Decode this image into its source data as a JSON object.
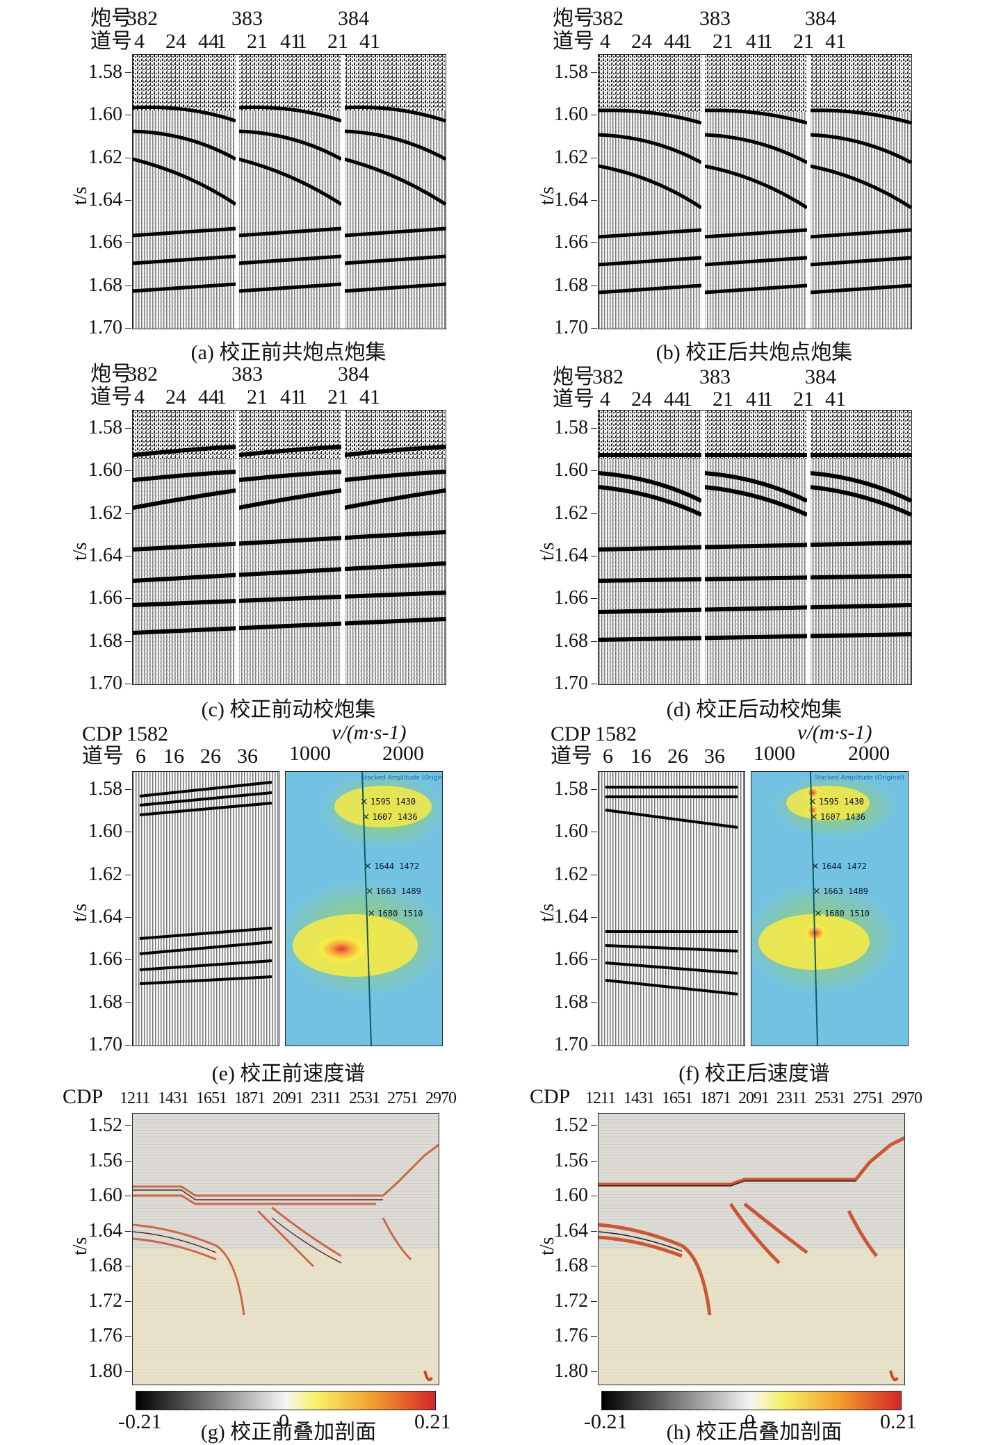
{
  "labels": {
    "shot_no": "炮号",
    "trace_no": "道号",
    "t_axis": "t/s",
    "cdp": "CDP",
    "velocity_axis": "v/(m·s-1)"
  },
  "shot_gather_axis": {
    "shots": [
      "382",
      "383",
      "384"
    ],
    "traces": [
      "4",
      "24",
      "44",
      "1",
      "21",
      "41",
      "1",
      "21",
      "41"
    ],
    "t_ticks": [
      "1.58",
      "1.60",
      "1.62",
      "1.64",
      "1.66",
      "1.68",
      "1.70"
    ]
  },
  "velocity_axis": {
    "cdp_value": "1582",
    "traces": [
      "6",
      "16",
      "26",
      "36"
    ],
    "v_ticks": [
      "1000",
      "2000"
    ],
    "t_ticks": [
      "1.58",
      "1.60",
      "1.62",
      "1.64",
      "1.66",
      "1.68",
      "1.70"
    ],
    "spectrum_title": "Stacked Amplitude (Original)",
    "picks": [
      {
        "time": "1595",
        "velocity": "1430"
      },
      {
        "time": "1607",
        "velocity": "1436"
      },
      {
        "time": "1644",
        "velocity": "1472"
      },
      {
        "time": "1663",
        "velocity": "1489"
      },
      {
        "time": "1680",
        "velocity": "1510"
      }
    ]
  },
  "stack_axis": {
    "cdp_ticks": [
      "1211",
      "1431",
      "1651",
      "1871",
      "2091",
      "2311",
      "2531",
      "2751",
      "2970"
    ],
    "t_ticks": [
      "1.52",
      "1.56",
      "1.60",
      "1.64",
      "1.68",
      "1.72",
      "1.76",
      "1.80"
    ],
    "colorbar_ticks": [
      "-0.21",
      "0",
      "0.21"
    ]
  },
  "captions": {
    "a": "(a) 校正前共炮点炮集",
    "b": "(b) 校正后共炮点炮集",
    "c": "(c) 校正前动校炮集",
    "d": "(d) 校正后动校炮集",
    "e": "(e) 校正前速度谱",
    "f": "(f) 校正后速度谱",
    "g": "(g) 校正前叠加剖面",
    "h": "(h) 校正后叠加剖面"
  }
}
